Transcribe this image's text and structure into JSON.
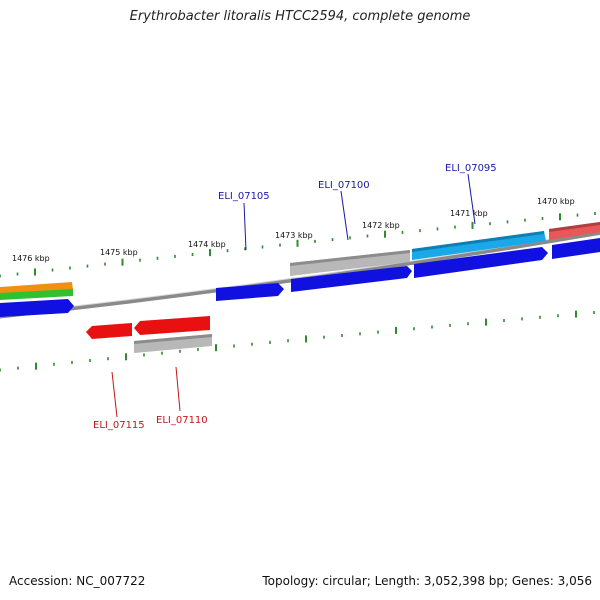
{
  "title": "Erythrobacter litoralis HTCC2594, complete genome",
  "footer": {
    "accession": "Accession: NC_007722",
    "topology": "Topology: circular; Length: 3,052,398 bp; Genes: 3,056"
  },
  "colors": {
    "backbone": "#8a8a8a",
    "tick": "#2e8b2e",
    "label_forward": "#1a1aa8",
    "label_reverse": "#c01818",
    "gene_blue": "#1010e0",
    "gene_red": "#e81010",
    "gene_gray": "#b8b8b8",
    "gene_cyan": "#19a8e8",
    "gene_orange": "#f09010",
    "gene_green": "#30c030",
    "gene_salmon": "#e85858"
  },
  "scale": {
    "ticks": [
      {
        "label": "1476 kbp"
      },
      {
        "label": "1475 kbp"
      },
      {
        "label": "1474 kbp"
      },
      {
        "label": "1473 kbp"
      },
      {
        "label": "1472 kbp"
      },
      {
        "label": "1471 kbp"
      },
      {
        "label": "1470 kbp"
      }
    ]
  },
  "gene_labels": [
    {
      "label": "ELI_07105",
      "strand": "forward"
    },
    {
      "label": "ELI_07100",
      "strand": "forward"
    },
    {
      "label": "ELI_07095",
      "strand": "forward"
    },
    {
      "label": "ELI_07115",
      "strand": "reverse"
    },
    {
      "label": "ELI_07110",
      "strand": "reverse"
    }
  ]
}
